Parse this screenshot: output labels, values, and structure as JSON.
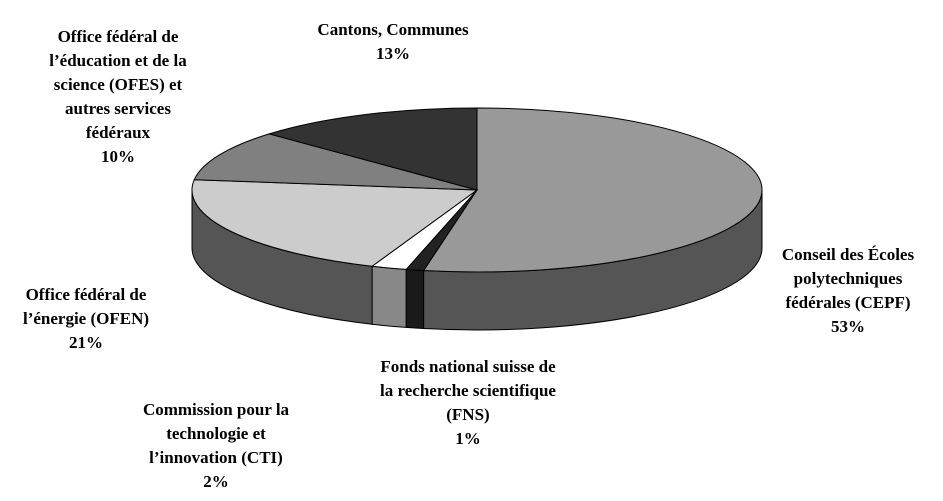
{
  "chart_data": {
    "type": "pie3d",
    "categories": [
      "Conseil des Écoles polytechniques fédérales (CEPF)",
      "Fonds national suisse de la recherche scientifique (FNS)",
      "Commission pour la technologie et l’innovation (CTI)",
      "Office fédéral de l’énergie (OFEN)",
      "Office fédéral de l’éducation et de la science (OFES) et autres services fédéraux",
      "Cantons, Communes"
    ],
    "values": [
      53,
      1,
      2,
      21,
      10,
      13
    ],
    "value_labels": [
      "53%",
      "1%",
      "2%",
      "21%",
      "10%",
      "13%"
    ],
    "colors": [
      "#999999",
      "#222222",
      "#ffffff",
      "#cccccc",
      "#808080",
      "#333333"
    ],
    "side_colors": [
      "#555555",
      "#1a1a1a",
      "#888888",
      "#555555",
      "#555555",
      "#222222"
    ]
  }
}
